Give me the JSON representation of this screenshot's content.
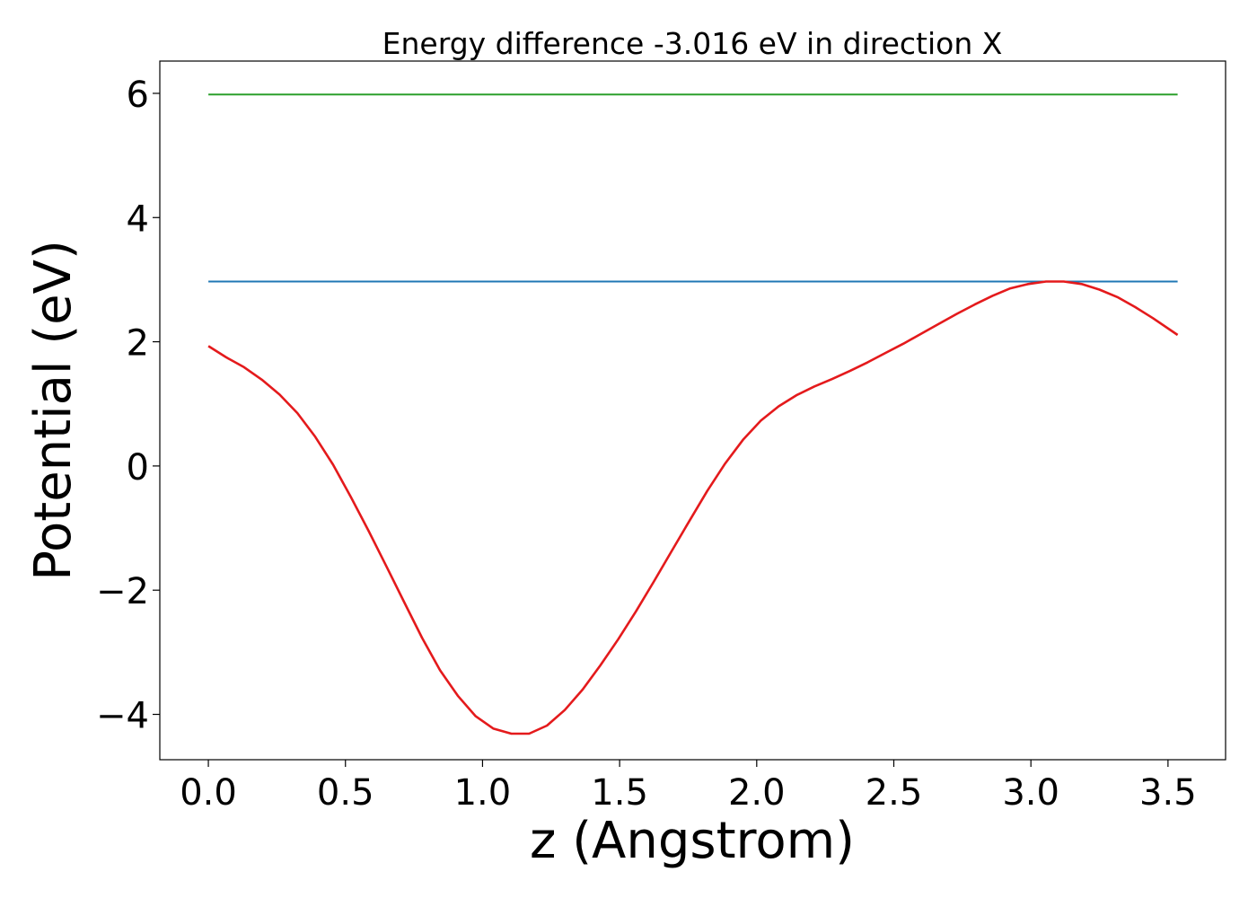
{
  "chart_data": {
    "type": "line",
    "title": "Energy difference -3.016 eV in direction X",
    "xlabel": "z (Angstrom)",
    "ylabel": "Potential (eV)",
    "xlim": [
      -0.177,
      3.71
    ],
    "ylim": [
      -4.73,
      6.52
    ],
    "xticks": [
      0.0,
      0.5,
      1.0,
      1.5,
      2.0,
      2.5,
      3.0,
      3.5
    ],
    "xtick_labels": [
      "0.0",
      "0.5",
      "1.0",
      "1.5",
      "2.0",
      "2.5",
      "3.0",
      "3.5"
    ],
    "yticks": [
      -4,
      -2,
      0,
      2,
      4,
      6
    ],
    "ytick_labels": [
      "−4",
      "−2",
      "0",
      "2",
      "4",
      "6"
    ],
    "grid": false,
    "series": [
      {
        "color": "#2ca02c",
        "x": [
          0.0,
          3.535
        ],
        "y": [
          5.98,
          5.98
        ]
      },
      {
        "color": "#1f77b4",
        "x": [
          0.0,
          3.535
        ],
        "y": [
          2.97,
          2.97
        ]
      },
      {
        "color": "#e41a1c",
        "x": [
          0.0,
          0.065,
          0.13,
          0.195,
          0.26,
          0.325,
          0.39,
          0.455,
          0.52,
          0.585,
          0.65,
          0.715,
          0.78,
          0.845,
          0.91,
          0.975,
          1.04,
          1.105,
          1.17,
          1.235,
          1.3,
          1.365,
          1.43,
          1.495,
          1.56,
          1.625,
          1.69,
          1.755,
          1.82,
          1.885,
          1.95,
          2.015,
          2.08,
          2.145,
          2.21,
          2.275,
          2.34,
          2.405,
          2.47,
          2.535,
          2.6,
          2.665,
          2.73,
          2.795,
          2.86,
          2.925,
          2.99,
          3.055,
          3.12,
          3.185,
          3.25,
          3.315,
          3.38,
          3.445,
          3.535
        ],
        "y": [
          1.93,
          1.75,
          1.59,
          1.39,
          1.15,
          0.85,
          0.47,
          0.02,
          -0.5,
          -1.05,
          -1.62,
          -2.2,
          -2.77,
          -3.29,
          -3.7,
          -4.03,
          -4.23,
          -4.31,
          -4.31,
          -4.18,
          -3.93,
          -3.6,
          -3.21,
          -2.79,
          -2.34,
          -1.86,
          -1.37,
          -0.88,
          -0.4,
          0.04,
          0.42,
          0.73,
          0.96,
          1.14,
          1.28,
          1.4,
          1.53,
          1.67,
          1.82,
          1.97,
          2.13,
          2.29,
          2.45,
          2.6,
          2.74,
          2.86,
          2.93,
          2.97,
          2.97,
          2.93,
          2.84,
          2.72,
          2.56,
          2.38,
          2.11
        ]
      }
    ]
  }
}
